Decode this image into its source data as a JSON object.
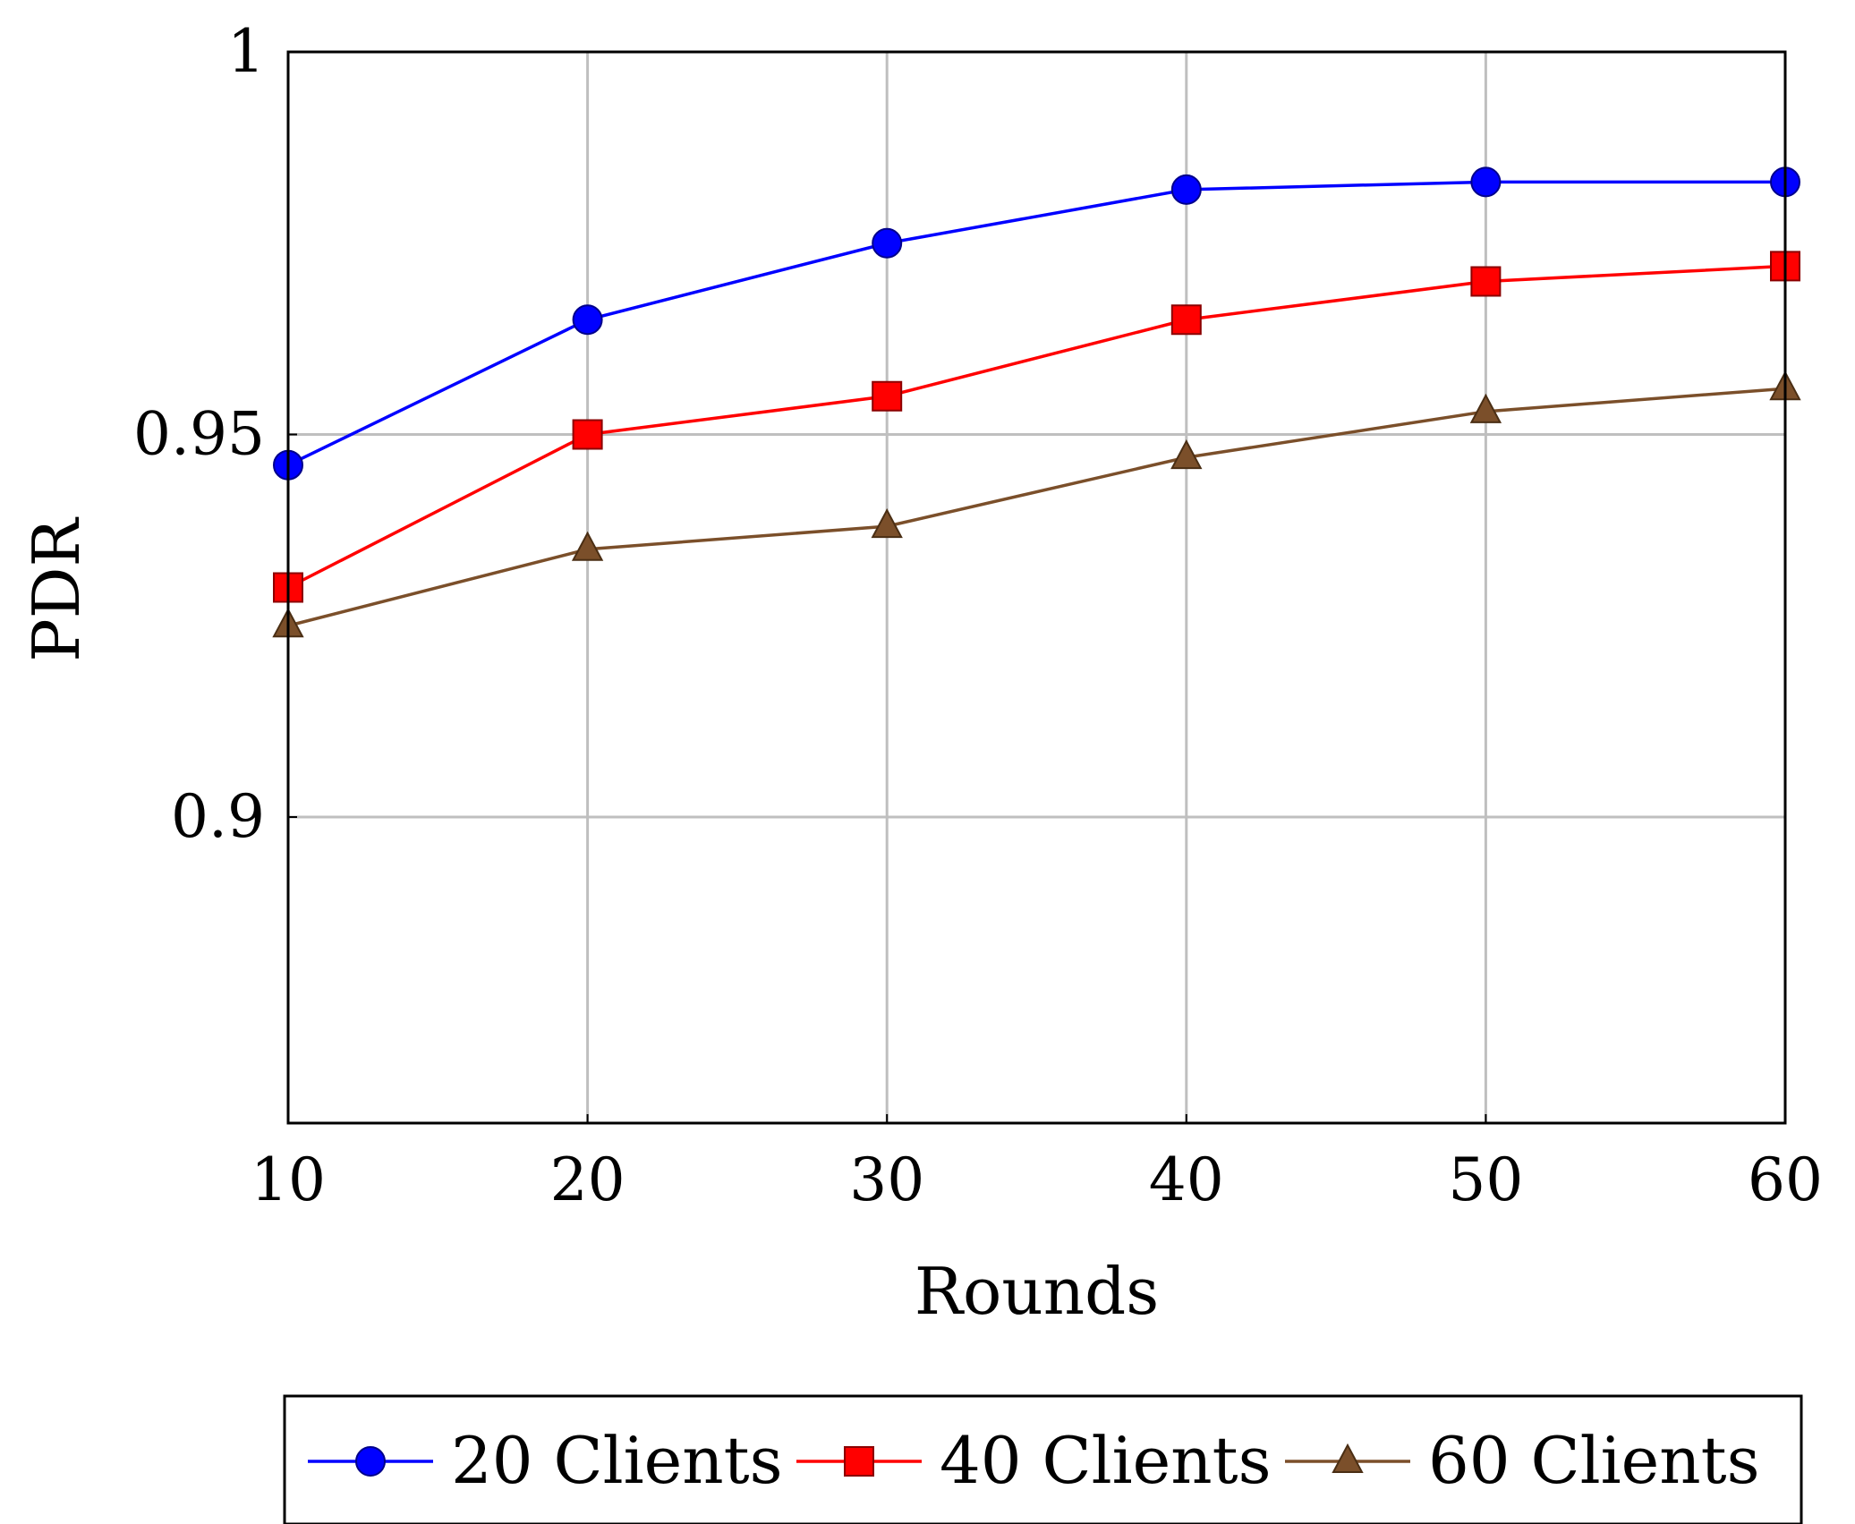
{
  "chart_data": {
    "type": "line",
    "title": "",
    "xlabel": "Rounds",
    "ylabel": "PDR",
    "x": [
      10,
      20,
      30,
      40,
      50,
      60
    ],
    "xlim": [
      10,
      60
    ],
    "ylim": [
      0.86,
      1.0
    ],
    "xticks": [
      "10",
      "20",
      "30",
      "40",
      "50",
      "60"
    ],
    "yticks": [
      "0.9",
      "0.95",
      "1"
    ],
    "grid": true,
    "legend_position": "bottom",
    "series": [
      {
        "name": "20 Clients",
        "color": "#0000ff",
        "marker": "circle",
        "values": [
          0.946,
          0.965,
          0.975,
          0.982,
          0.983,
          0.983
        ]
      },
      {
        "name": "40 Clients",
        "color": "#ff0000",
        "marker": "square",
        "values": [
          0.93,
          0.95,
          0.955,
          0.965,
          0.97,
          0.972
        ]
      },
      {
        "name": "60 Clients",
        "color": "#7b4f2a",
        "marker": "triangle",
        "values": [
          0.925,
          0.935,
          0.938,
          0.947,
          0.953,
          0.956
        ]
      }
    ]
  }
}
